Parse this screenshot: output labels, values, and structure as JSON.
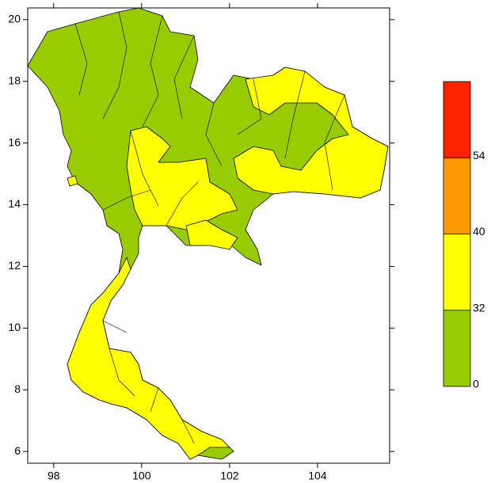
{
  "map": {
    "xlim": [
      97.41,
      105.64
    ],
    "ylim": [
      5.62,
      20.38
    ],
    "xticks": [
      98,
      100,
      102,
      104
    ],
    "yticks": [
      6,
      8,
      10,
      12,
      14,
      16,
      18,
      20
    ],
    "colorbar": {
      "levels": [
        0,
        32,
        40,
        54
      ],
      "colors": [
        "#99cc00",
        "#ffff00",
        "#ff9900",
        "#ff2200"
      ]
    }
  }
}
